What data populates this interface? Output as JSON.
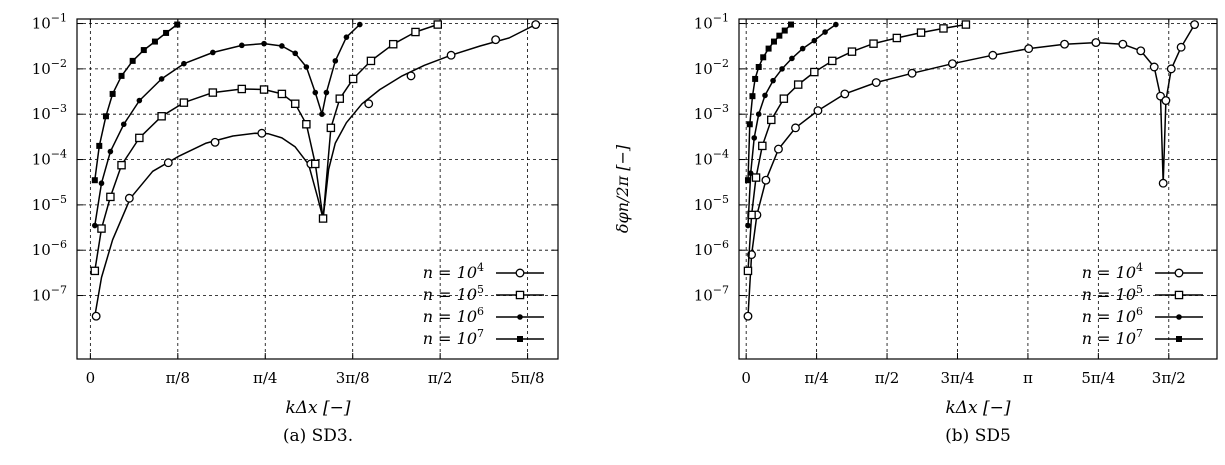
{
  "chart_data": [
    {
      "type": "line",
      "caption": "(a) SD3.",
      "xlabel": "kΔx [−]",
      "ylabel": "",
      "xlim": [
        -0.06,
        2.1
      ],
      "ylim_log10": [
        -8.4,
        -0.9
      ],
      "y_scale": "log",
      "grid": true,
      "legend_position": "bottom-right",
      "x_ticks": [
        {
          "value": 0,
          "label": "0"
        },
        {
          "value": 0.3927,
          "label": "π/8"
        },
        {
          "value": 0.7854,
          "label": "π/4"
        },
        {
          "value": 1.1781,
          "label": "3π/8"
        },
        {
          "value": 1.5708,
          "label": "π/2"
        },
        {
          "value": 1.9635,
          "label": "5π/8"
        }
      ],
      "y_ticks": [
        {
          "exp": -1,
          "label": "10",
          "sup": "−1"
        },
        {
          "exp": -2,
          "label": "10",
          "sup": "−2"
        },
        {
          "exp": -3,
          "label": "10",
          "sup": "−3"
        },
        {
          "exp": -4,
          "label": "10",
          "sup": "−4"
        },
        {
          "exp": -5,
          "label": "10",
          "sup": "−5"
        },
        {
          "exp": -6,
          "label": "10",
          "sup": "−6"
        },
        {
          "exp": -7,
          "label": "10",
          "sup": "−7"
        }
      ],
      "series": [
        {
          "name": "n = 10",
          "name_sup": "4",
          "marker": "circle",
          "x": [
            0.02,
            0.05,
            0.1,
            0.18,
            0.28,
            0.4,
            0.52,
            0.64,
            0.74,
            0.8,
            0.86,
            0.92,
            0.98,
            1.02,
            1.045,
            1.07,
            1.1,
            1.15,
            1.22,
            1.3,
            1.4,
            1.5,
            1.62,
            1.75,
            1.88,
            2.0
          ],
          "y": [
            3.5e-08,
            2.5e-07,
            1.7e-06,
            1.4e-05,
            5.5e-05,
            0.00012,
            0.00023,
            0.00033,
            0.00038,
            0.00037,
            0.0003,
            0.00019,
            7.8e-05,
            1.5e-05,
            5e-06,
            6e-05,
            0.00023,
            0.00065,
            0.0017,
            0.0035,
            0.007,
            0.012,
            0.02,
            0.032,
            0.048,
            0.095
          ],
          "marker_x": [
            0.026,
            0.175,
            0.35,
            0.56,
            0.77,
            0.99,
            1.25,
            1.44,
            1.62,
            1.82,
            2.0
          ],
          "marker_y": [
            3.5e-08,
            1.4e-05,
            8.5e-05,
            0.00024,
            0.00038,
            8e-05,
            0.0017,
            0.007,
            0.02,
            0.044,
            0.095
          ]
        },
        {
          "name": "n = 10",
          "name_sup": "5",
          "marker": "square",
          "x": [
            0.02,
            0.05,
            0.09,
            0.14,
            0.22,
            0.32,
            0.42,
            0.55,
            0.68,
            0.78,
            0.86,
            0.92,
            0.97,
            1.01,
            1.045,
            1.08,
            1.12,
            1.18,
            1.26,
            1.36,
            1.46,
            1.56
          ],
          "y": [
            3.5e-07,
            3e-06,
            1.5e-05,
            7.5e-05,
            0.0003,
            0.0009,
            0.0018,
            0.003,
            0.0036,
            0.0035,
            0.0028,
            0.0017,
            0.0006,
            8e-05,
            5e-06,
            0.0005,
            0.0022,
            0.006,
            0.015,
            0.035,
            0.065,
            0.095
          ]
        },
        {
          "name": "n = 10",
          "name_sup": "6",
          "marker": "dot",
          "x": [
            0.02,
            0.05,
            0.09,
            0.15,
            0.22,
            0.32,
            0.42,
            0.55,
            0.68,
            0.78,
            0.86,
            0.92,
            0.97,
            1.01,
            1.04,
            1.06,
            1.1,
            1.15,
            1.21
          ],
          "y": [
            3.5e-06,
            3e-05,
            0.00015,
            0.0006,
            0.002,
            0.006,
            0.013,
            0.023,
            0.033,
            0.036,
            0.032,
            0.022,
            0.011,
            0.003,
            0.001,
            0.003,
            0.015,
            0.05,
            0.095
          ]
        },
        {
          "name": "n = 10",
          "name_sup": "7",
          "marker": "filled-square",
          "x": [
            0.02,
            0.04,
            0.07,
            0.1,
            0.14,
            0.19,
            0.24,
            0.29,
            0.34,
            0.39
          ],
          "y": [
            3.5e-05,
            0.0002,
            0.0009,
            0.0028,
            0.007,
            0.015,
            0.026,
            0.04,
            0.062,
            0.095
          ]
        }
      ]
    },
    {
      "type": "line",
      "caption": "(b) SD5",
      "xlabel": "kΔx [−]",
      "ylabel": "δφn/2π [−]",
      "xlim": [
        -0.08,
        5.25
      ],
      "ylim_log10": [
        -8.4,
        -0.9
      ],
      "y_scale": "log",
      "grid": true,
      "legend_position": "bottom-right",
      "x_ticks": [
        {
          "value": 0,
          "label": "0"
        },
        {
          "value": 0.7854,
          "label": "π/4"
        },
        {
          "value": 1.5708,
          "label": "π/2"
        },
        {
          "value": 2.3562,
          "label": "3π/4"
        },
        {
          "value": 3.1416,
          "label": "π"
        },
        {
          "value": 3.927,
          "label": "5π/4"
        },
        {
          "value": 4.7124,
          "label": "3π/2"
        }
      ],
      "y_ticks": [
        {
          "exp": -1,
          "label": "10",
          "sup": "−1"
        },
        {
          "exp": -2,
          "label": "10",
          "sup": "−2"
        },
        {
          "exp": -3,
          "label": "10",
          "sup": "−3"
        },
        {
          "exp": -4,
          "label": "10",
          "sup": "−4"
        },
        {
          "exp": -5,
          "label": "10",
          "sup": "−5"
        },
        {
          "exp": -6,
          "label": "10",
          "sup": "−6"
        },
        {
          "exp": -7,
          "label": "10",
          "sup": "−7"
        }
      ],
      "series": [
        {
          "name": "n = 10",
          "name_sup": "4",
          "marker": "circle",
          "x": [
            0.02,
            0.06,
            0.12,
            0.22,
            0.36,
            0.55,
            0.8,
            1.1,
            1.45,
            1.85,
            2.3,
            2.75,
            3.15,
            3.55,
            3.9,
            4.2,
            4.4,
            4.55,
            4.62,
            4.65,
            4.68,
            4.74,
            4.85,
            5.0
          ],
          "y": [
            3.5e-08,
            8e-07,
            6e-06,
            3.5e-05,
            0.00017,
            0.0005,
            0.0012,
            0.0028,
            0.005,
            0.008,
            0.013,
            0.02,
            0.028,
            0.035,
            0.038,
            0.035,
            0.025,
            0.011,
            0.0025,
            3e-05,
            0.002,
            0.01,
            0.03,
            0.095
          ]
        },
        {
          "name": "n = 10",
          "name_sup": "5",
          "marker": "square",
          "x": [
            0.02,
            0.06,
            0.11,
            0.18,
            0.28,
            0.42,
            0.58,
            0.76,
            0.96,
            1.18,
            1.42,
            1.68,
            1.95,
            2.2,
            2.45
          ],
          "y": [
            3.5e-07,
            6e-06,
            4e-05,
            0.0002,
            0.00075,
            0.0022,
            0.0045,
            0.0085,
            0.015,
            0.024,
            0.036,
            0.048,
            0.063,
            0.078,
            0.095
          ]
        },
        {
          "name": "n = 10",
          "name_sup": "6",
          "marker": "dot",
          "x": [
            0.02,
            0.05,
            0.09,
            0.14,
            0.21,
            0.3,
            0.4,
            0.51,
            0.63,
            0.76,
            0.88,
            1.0
          ],
          "y": [
            3.5e-06,
            5e-05,
            0.0003,
            0.001,
            0.0026,
            0.0055,
            0.01,
            0.017,
            0.028,
            0.042,
            0.065,
            0.095
          ]
        },
        {
          "name": "n = 10",
          "name_sup": "7",
          "marker": "filled-square",
          "x": [
            0.02,
            0.04,
            0.07,
            0.1,
            0.14,
            0.19,
            0.25,
            0.31,
            0.37,
            0.43,
            0.5
          ],
          "y": [
            3.5e-05,
            0.0006,
            0.0025,
            0.006,
            0.011,
            0.018,
            0.028,
            0.04,
            0.054,
            0.07,
            0.095
          ]
        }
      ]
    }
  ]
}
